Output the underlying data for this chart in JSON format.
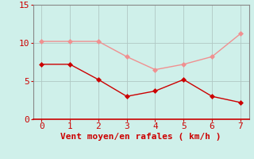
{
  "x": [
    0,
    1,
    2,
    3,
    4,
    5,
    6,
    7
  ],
  "y_mean": [
    7.2,
    7.2,
    5.2,
    3.0,
    3.7,
    5.2,
    3.0,
    2.2
  ],
  "y_gust": [
    10.2,
    10.2,
    10.2,
    8.2,
    6.5,
    7.2,
    8.2,
    11.2
  ],
  "color_mean": "#cc0000",
  "color_gust": "#f09090",
  "bg_color": "#cff0ea",
  "grid_color": "#b0c8c4",
  "axis_color": "#888888",
  "spine_color": "#cc0000",
  "xlabel": "Vent moyen/en rafales ( km/h )",
  "xlabel_color": "#cc0000",
  "tick_color": "#cc0000",
  "xlim": [
    -0.3,
    7.3
  ],
  "ylim": [
    0,
    15
  ],
  "xticks": [
    0,
    1,
    2,
    3,
    4,
    5,
    6,
    7
  ],
  "yticks": [
    0,
    5,
    10,
    15
  ],
  "marker": "D",
  "markersize": 3,
  "linewidth": 1.0,
  "xlabel_fontsize": 8,
  "tick_fontsize": 8
}
